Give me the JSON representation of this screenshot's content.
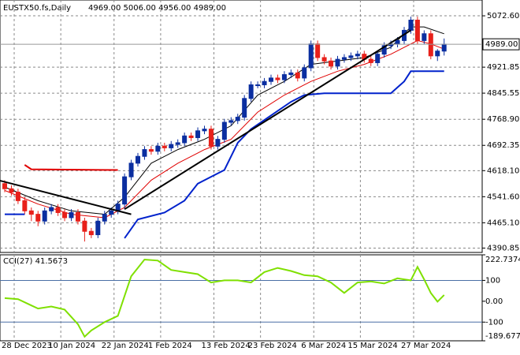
{
  "chart_data": {
    "type": "candlestick",
    "symbol": "EUSTX50.fs,Daily",
    "ohlc": "4969.00 5006.00 4956.00 4989.00",
    "candles": [
      [
        4580,
        4590,
        4555,
        4565
      ],
      [
        4565,
        4575,
        4545,
        4555
      ],
      [
        4555,
        4565,
        4520,
        4530
      ],
      [
        4530,
        4540,
        4490,
        4500
      ],
      [
        4500,
        4510,
        4470,
        4490
      ],
      [
        4490,
        4500,
        4455,
        4470
      ],
      [
        4470,
        4510,
        4460,
        4500
      ],
      [
        4500,
        4520,
        4490,
        4510
      ],
      [
        4510,
        4520,
        4485,
        4495
      ],
      [
        4495,
        4505,
        4470,
        4480
      ],
      [
        4480,
        4505,
        4470,
        4495
      ],
      [
        4495,
        4505,
        4460,
        4470
      ],
      [
        4470,
        4480,
        4410,
        4440
      ],
      [
        4440,
        4450,
        4420,
        4430
      ],
      [
        4430,
        4480,
        4420,
        4470
      ],
      [
        4470,
        4500,
        4460,
        4490
      ],
      [
        4490,
        4510,
        4480,
        4500
      ],
      [
        4500,
        4530,
        4490,
        4520
      ],
      [
        4520,
        4610,
        4505,
        4600
      ],
      [
        4600,
        4650,
        4590,
        4640
      ],
      [
        4640,
        4670,
        4630,
        4660
      ],
      [
        4660,
        4690,
        4650,
        4680
      ],
      [
        4680,
        4690,
        4665,
        4675
      ],
      [
        4675,
        4700,
        4665,
        4690
      ],
      [
        4690,
        4700,
        4675,
        4685
      ],
      [
        4685,
        4705,
        4675,
        4695
      ],
      [
        4695,
        4710,
        4685,
        4700
      ],
      [
        4700,
        4730,
        4690,
        4720
      ],
      [
        4720,
        4730,
        4705,
        4715
      ],
      [
        4715,
        4745,
        4705,
        4735
      ],
      [
        4735,
        4750,
        4725,
        4740
      ],
      [
        4740,
        4750,
        4680,
        4690
      ],
      [
        4690,
        4720,
        4680,
        4710
      ],
      [
        4710,
        4770,
        4700,
        4760
      ],
      [
        4760,
        4775,
        4750,
        4765
      ],
      [
        4765,
        4785,
        4755,
        4775
      ],
      [
        4775,
        4840,
        4765,
        4830
      ],
      [
        4830,
        4880,
        4820,
        4870
      ],
      [
        4870,
        4880,
        4860,
        4870
      ],
      [
        4870,
        4890,
        4860,
        4880
      ],
      [
        4880,
        4900,
        4870,
        4890
      ],
      [
        4890,
        4900,
        4875,
        4885
      ],
      [
        4885,
        4910,
        4875,
        4900
      ],
      [
        4900,
        4915,
        4890,
        4905
      ],
      [
        4905,
        4915,
        4880,
        4890
      ],
      [
        4890,
        4930,
        4880,
        4920
      ],
      [
        4920,
        5000,
        4910,
        4990
      ],
      [
        4990,
        5000,
        4940,
        4950
      ],
      [
        4950,
        4960,
        4930,
        4940
      ],
      [
        4940,
        4950,
        4915,
        4925
      ],
      [
        4925,
        4955,
        4915,
        4945
      ],
      [
        4945,
        4960,
        4935,
        4950
      ],
      [
        4950,
        4965,
        4940,
        4955
      ],
      [
        4955,
        4970,
        4945,
        4960
      ],
      [
        4960,
        4970,
        4935,
        4945
      ],
      [
        4945,
        4955,
        4925,
        4935
      ],
      [
        4935,
        4970,
        4925,
        4960
      ],
      [
        4960,
        4995,
        4950,
        4985
      ],
      [
        4985,
        5000,
        4975,
        4990
      ],
      [
        4990,
        5010,
        4980,
        5000
      ],
      [
        5000,
        5040,
        4990,
        5030
      ],
      [
        5030,
        5070,
        5020,
        5060
      ],
      [
        5060,
        5070,
        4990,
        5000
      ],
      [
        5000,
        5030,
        4990,
        5020
      ],
      [
        5020,
        5030,
        4945,
        4955
      ],
      [
        4955,
        4975,
        4940,
        4969
      ],
      [
        4969,
        5006,
        4956,
        4989
      ]
    ],
    "bull_color": "#0b2ea0",
    "bear_color": "#e8201a",
    "ylim": [
      4378,
      5119
    ],
    "yticks": [
      {
        "value": 5072.6,
        "label": "5072.60"
      },
      {
        "value": 4921.85,
        "label": "4921.85"
      },
      {
        "value": 4845.55,
        "label": "4845.55"
      },
      {
        "value": 4768.9,
        "label": "4768.90"
      },
      {
        "value": 4692.35,
        "label": "4692.35"
      },
      {
        "value": 4618.1,
        "label": "4618.10"
      },
      {
        "value": 4541.6,
        "label": "4541.60"
      },
      {
        "value": 4465.1,
        "label": "4465.10"
      },
      {
        "value": 4390.85,
        "label": "4390.85"
      }
    ],
    "current_price": {
      "value": 4989,
      "label": "4989.00"
    },
    "xticks": [
      {
        "value": 0,
        "label": "28 Dec 2023"
      },
      {
        "value": 7,
        "label": "10 Jan 2024"
      },
      {
        "value": 15,
        "label": "22 Jan 2024"
      },
      {
        "value": 22,
        "label": "1 Feb 2024"
      },
      {
        "value": 30,
        "label": "13 Feb 2024"
      },
      {
        "value": 37,
        "label": "23 Feb 2024"
      },
      {
        "value": 45,
        "label": "6 Mar 2024"
      },
      {
        "value": 52,
        "label": "15 Mar 2024"
      },
      {
        "value": 60,
        "label": "27 Mar 2024"
      }
    ],
    "grid": true,
    "overlays": [
      {
        "color": "#e00000",
        "width": 2,
        "points": [
          [
            3,
            4635
          ],
          [
            4,
            4622
          ],
          [
            17,
            4620
          ]
        ]
      },
      {
        "color": "#0022cc",
        "width": 2,
        "points": [
          [
            0,
            4490
          ],
          [
            3,
            4490
          ]
        ]
      },
      {
        "color": "#0022cc",
        "width": 2,
        "points": [
          [
            18,
            4420
          ],
          [
            20,
            4475
          ],
          [
            24,
            4495
          ],
          [
            27,
            4530
          ],
          [
            29,
            4580
          ],
          [
            31,
            4600
          ],
          [
            33,
            4620
          ],
          [
            35,
            4700
          ],
          [
            37,
            4740
          ],
          [
            43,
            4820
          ],
          [
            45,
            4840
          ],
          [
            48,
            4845
          ],
          [
            58,
            4845
          ],
          [
            60,
            4880
          ],
          [
            61,
            4910
          ],
          [
            66,
            4910
          ]
        ]
      },
      {
        "color": "#e00000",
        "width": 1,
        "points": [
          [
            0,
            4560
          ],
          [
            5,
            4520
          ],
          [
            10,
            4490
          ],
          [
            15,
            4480
          ],
          [
            18,
            4510
          ],
          [
            22,
            4590
          ],
          [
            26,
            4640
          ],
          [
            30,
            4680
          ],
          [
            34,
            4710
          ],
          [
            38,
            4790
          ],
          [
            42,
            4840
          ],
          [
            46,
            4880
          ],
          [
            50,
            4910
          ],
          [
            54,
            4930
          ],
          [
            58,
            4960
          ],
          [
            62,
            5000
          ],
          [
            64,
            4990
          ],
          [
            66,
            4975
          ]
        ]
      },
      {
        "color": "#000000",
        "width": 1,
        "points": [
          [
            0,
            4570
          ],
          [
            5,
            4530
          ],
          [
            10,
            4500
          ],
          [
            15,
            4490
          ],
          [
            18,
            4540
          ],
          [
            22,
            4640
          ],
          [
            26,
            4680
          ],
          [
            30,
            4710
          ],
          [
            34,
            4750
          ],
          [
            38,
            4840
          ],
          [
            42,
            4880
          ],
          [
            46,
            4930
          ],
          [
            50,
            4940
          ],
          [
            54,
            4950
          ],
          [
            58,
            4980
          ],
          [
            61,
            5040
          ],
          [
            63,
            5040
          ],
          [
            66,
            5020
          ]
        ]
      },
      {
        "color": "#000000",
        "width": 2,
        "points": [
          [
            -1,
            4590
          ],
          [
            19,
            4490
          ]
        ]
      },
      {
        "color": "#000000",
        "width": 2,
        "points": [
          [
            18,
            4505
          ],
          [
            61,
            5030
          ]
        ]
      }
    ],
    "cci": {
      "label": "CCI(27) 41.5673",
      "color": "#7fe000",
      "ylim": [
        -189.6771,
        222.7374
      ],
      "yticks": [
        {
          "value": 222.7374,
          "label": "222.7374"
        },
        {
          "value": 100,
          "label": "100"
        },
        {
          "value": 0,
          "label": "0.00"
        },
        {
          "value": -100,
          "label": "-100"
        },
        {
          "value": -189.6771,
          "label": "-189.6771"
        }
      ],
      "levels": [
        100,
        -100
      ],
      "points": [
        [
          0,
          15
        ],
        [
          2,
          10
        ],
        [
          4,
          -20
        ],
        [
          5,
          -35
        ],
        [
          7,
          -25
        ],
        [
          9,
          -40
        ],
        [
          11,
          -110
        ],
        [
          12,
          -170
        ],
        [
          13,
          -140
        ],
        [
          15,
          -100
        ],
        [
          17,
          -70
        ],
        [
          19,
          120
        ],
        [
          21,
          200
        ],
        [
          23,
          195
        ],
        [
          25,
          150
        ],
        [
          27,
          140
        ],
        [
          29,
          130
        ],
        [
          31,
          90
        ],
        [
          33,
          100
        ],
        [
          35,
          100
        ],
        [
          37,
          90
        ],
        [
          39,
          140
        ],
        [
          41,
          160
        ],
        [
          43,
          145
        ],
        [
          45,
          125
        ],
        [
          47,
          120
        ],
        [
          49,
          90
        ],
        [
          51,
          40
        ],
        [
          53,
          90
        ],
        [
          55,
          95
        ],
        [
          57,
          85
        ],
        [
          59,
          110
        ],
        [
          61,
          100
        ],
        [
          62,
          165
        ],
        [
          63,
          105
        ],
        [
          64,
          40
        ],
        [
          65,
          -2
        ],
        [
          66,
          30
        ]
      ]
    }
  }
}
